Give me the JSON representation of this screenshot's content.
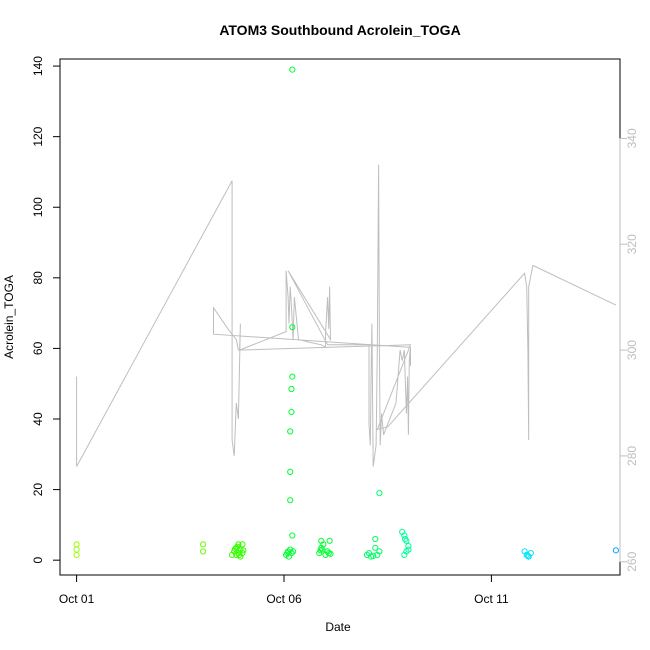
{
  "chart_data": {
    "type": "scatter",
    "title": "ATOM3 Southbound Acrolein_TOGA",
    "xlabel": "Date",
    "ylabel": "Acrolein_TOGA",
    "x_ticks": [
      "Oct 01",
      "Oct 06",
      "Oct 11"
    ],
    "x_tick_values": [
      1.0,
      6.0,
      11.0
    ],
    "xlim": [
      0.6,
      14.1
    ],
    "ylim": [
      -4.2,
      142
    ],
    "y_ticks": [
      0,
      20,
      40,
      60,
      80,
      100,
      120,
      140
    ],
    "y2lim": [
      257.5,
      355.0
    ],
    "y2_ticks": [
      260,
      280,
      300,
      320,
      340
    ],
    "colors": {
      "points_axis": "#000000",
      "secondary_line": "#bebebe",
      "frame": "#000000"
    },
    "secondary_line": {
      "color": "#bebebe",
      "points": [
        [
          1.0,
          295.0
        ],
        [
          1.0,
          278.0
        ],
        [
          4.75,
          332.0
        ],
        [
          4.75,
          283.0
        ],
        [
          4.8,
          280.0
        ],
        [
          4.85,
          290.0
        ],
        [
          4.9,
          287.0
        ],
        [
          4.95,
          305.0
        ],
        [
          4.93,
          300.0
        ],
        [
          6.05,
          303.5
        ],
        [
          6.05,
          315.0
        ],
        [
          6.1,
          310.0
        ],
        [
          6.12,
          305.0
        ],
        [
          6.15,
          312.0
        ],
        [
          6.18,
          308.0
        ],
        [
          6.22,
          302.0
        ],
        [
          6.25,
          310.0
        ],
        [
          6.35,
          302.0
        ],
        [
          6.6,
          301.5
        ],
        [
          6.9,
          301.0
        ],
        [
          7.0,
          300.5
        ],
        [
          7.0,
          303.0
        ],
        [
          7.05,
          310.0
        ],
        [
          7.08,
          304.0
        ],
        [
          7.1,
          312.0
        ],
        [
          7.12,
          302.0
        ],
        [
          6.1,
          315.0
        ],
        [
          7.05,
          301.0
        ],
        [
          8.05,
          301.0
        ],
        [
          8.05,
          286.0
        ],
        [
          8.08,
          282.0
        ],
        [
          8.1,
          295.0
        ],
        [
          8.12,
          305.0
        ],
        [
          8.15,
          278.0
        ],
        [
          8.22,
          282.0
        ],
        [
          8.25,
          300.0
        ],
        [
          8.28,
          335.0
        ],
        [
          8.3,
          300.0
        ],
        [
          8.32,
          282.0
        ],
        [
          8.35,
          288.0
        ],
        [
          8.4,
          284.0
        ],
        [
          8.5,
          286.0
        ],
        [
          8.6,
          288.0
        ],
        [
          8.7,
          290.0
        ],
        [
          8.8,
          300.0
        ],
        [
          8.85,
          298.0
        ],
        [
          8.9,
          300.0
        ],
        [
          8.95,
          288.0
        ],
        [
          8.98,
          295.0
        ],
        [
          9.0,
          284.0
        ],
        [
          9.02,
          298.0
        ],
        [
          9.04,
          300.0
        ],
        [
          9.05,
          297.0
        ],
        [
          9.05,
          300.5
        ],
        [
          4.3,
          303.0
        ],
        [
          4.3,
          308.0
        ],
        [
          4.65,
          304.0
        ],
        [
          4.85,
          302.0
        ],
        [
          4.9,
          300.0
        ],
        [
          9.05,
          301.0
        ],
        [
          8.25,
          285.0
        ],
        [
          8.5,
          285.5
        ],
        [
          11.8,
          314.5
        ],
        [
          11.85,
          312.0
        ],
        [
          11.88,
          300.0
        ],
        [
          11.9,
          283.0
        ],
        [
          11.9,
          312.0
        ],
        [
          12.0,
          316.0
        ],
        [
          14.0,
          308.5
        ]
      ]
    },
    "series": [
      {
        "color": "#9aff00",
        "points": [
          [
            1.0,
            4.5
          ],
          [
            1.0,
            3.0
          ],
          [
            1.0,
            1.5
          ]
        ]
      },
      {
        "color": "#66ff00",
        "points": [
          [
            4.05,
            4.5
          ],
          [
            4.05,
            2.5
          ]
        ]
      },
      {
        "color": "#33ff00",
        "points": [
          [
            4.75,
            1.5
          ],
          [
            4.8,
            2.5
          ],
          [
            4.85,
            3.5
          ],
          [
            4.9,
            4.5
          ],
          [
            4.95,
            3.0
          ],
          [
            5.0,
            2.0
          ],
          [
            4.85,
            1.5
          ],
          [
            4.9,
            2.0
          ],
          [
            5.0,
            4.5
          ],
          [
            4.88,
            3.8
          ],
          [
            4.95,
            1.0
          ],
          [
            5.02,
            2.8
          ],
          [
            4.82,
            3.2
          ],
          [
            4.92,
            1.5
          ]
        ]
      },
      {
        "color": "#00ff33",
        "points": [
          [
            6.05,
            1.5
          ],
          [
            6.08,
            2.0
          ],
          [
            6.1,
            2.5
          ],
          [
            6.12,
            1.0
          ],
          [
            6.15,
            3.0
          ],
          [
            6.18,
            2.0
          ],
          [
            6.2,
            7.0
          ],
          [
            6.15,
            17.0
          ],
          [
            6.15,
            25.0
          ],
          [
            6.15,
            36.5
          ],
          [
            6.18,
            42.0
          ],
          [
            6.18,
            48.5
          ],
          [
            6.2,
            52.0
          ],
          [
            6.2,
            66.0
          ],
          [
            6.2,
            139.0
          ],
          [
            6.22,
            2.5
          ],
          [
            6.85,
            2.0
          ],
          [
            6.9,
            3.5
          ],
          [
            6.95,
            4.5
          ],
          [
            7.0,
            1.5
          ],
          [
            7.05,
            2.5
          ],
          [
            7.1,
            5.5
          ],
          [
            6.9,
            5.5
          ],
          [
            7.08,
            2.0
          ],
          [
            6.92,
            3.0
          ],
          [
            7.12,
            1.8
          ],
          [
            6.88,
            2.8
          ]
        ]
      },
      {
        "color": "#00ff66",
        "points": [
          [
            8.0,
            1.5
          ],
          [
            8.05,
            2.0
          ],
          [
            8.1,
            1.0
          ],
          [
            8.2,
            6.0
          ],
          [
            8.2,
            3.5
          ],
          [
            8.25,
            1.5
          ],
          [
            8.3,
            2.5
          ],
          [
            8.3,
            19.0
          ],
          [
            8.15,
            1.2
          ]
        ]
      },
      {
        "color": "#00ff99",
        "points": [
          [
            8.85,
            8.0
          ],
          [
            8.9,
            7.0
          ],
          [
            8.95,
            5.5
          ],
          [
            9.0,
            4.0
          ],
          [
            8.95,
            2.5
          ],
          [
            8.9,
            1.5
          ],
          [
            9.0,
            3.0
          ],
          [
            8.92,
            6.0
          ]
        ]
      },
      {
        "color": "#00e5ff",
        "points": [
          [
            11.8,
            2.5
          ],
          [
            11.85,
            1.5
          ],
          [
            11.9,
            1.0
          ],
          [
            11.95,
            2.0
          ],
          [
            11.88,
            1.2
          ]
        ]
      },
      {
        "color": "#00aaff",
        "points": [
          [
            14.0,
            2.8
          ]
        ]
      }
    ]
  }
}
